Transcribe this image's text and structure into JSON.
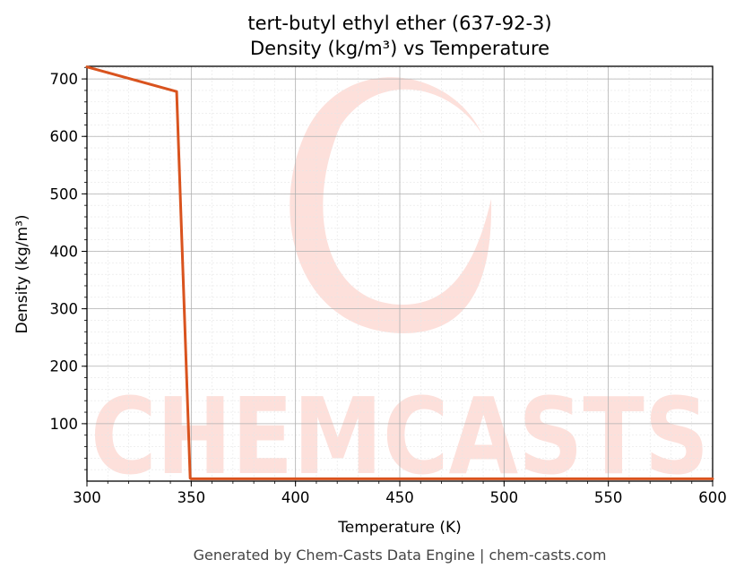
{
  "chart_data": {
    "type": "line",
    "title": "tert-butyl ethyl ether (637-92-3)",
    "subtitle": "Density (kg/m³) vs Temperature",
    "xlabel": "Temperature (K)",
    "ylabel": "Density (kg/m³)",
    "xlim": [
      300,
      600
    ],
    "ylim": [
      0,
      722
    ],
    "xticks": [
      300,
      350,
      400,
      450,
      500,
      550,
      600
    ],
    "yticks": [
      100,
      200,
      300,
      400,
      500,
      600,
      700
    ],
    "grid": true,
    "series": [
      {
        "color": "#d9531e",
        "x": [
          300,
          343,
          349.5,
          350,
          600
        ],
        "y": [
          721,
          678,
          5,
          4,
          4
        ]
      }
    ]
  },
  "watermark": {
    "text": "CHEMCASTS",
    "color": "#fde0db"
  },
  "footer": "Generated by Chem-Casts Data Engine | chem-casts.com"
}
